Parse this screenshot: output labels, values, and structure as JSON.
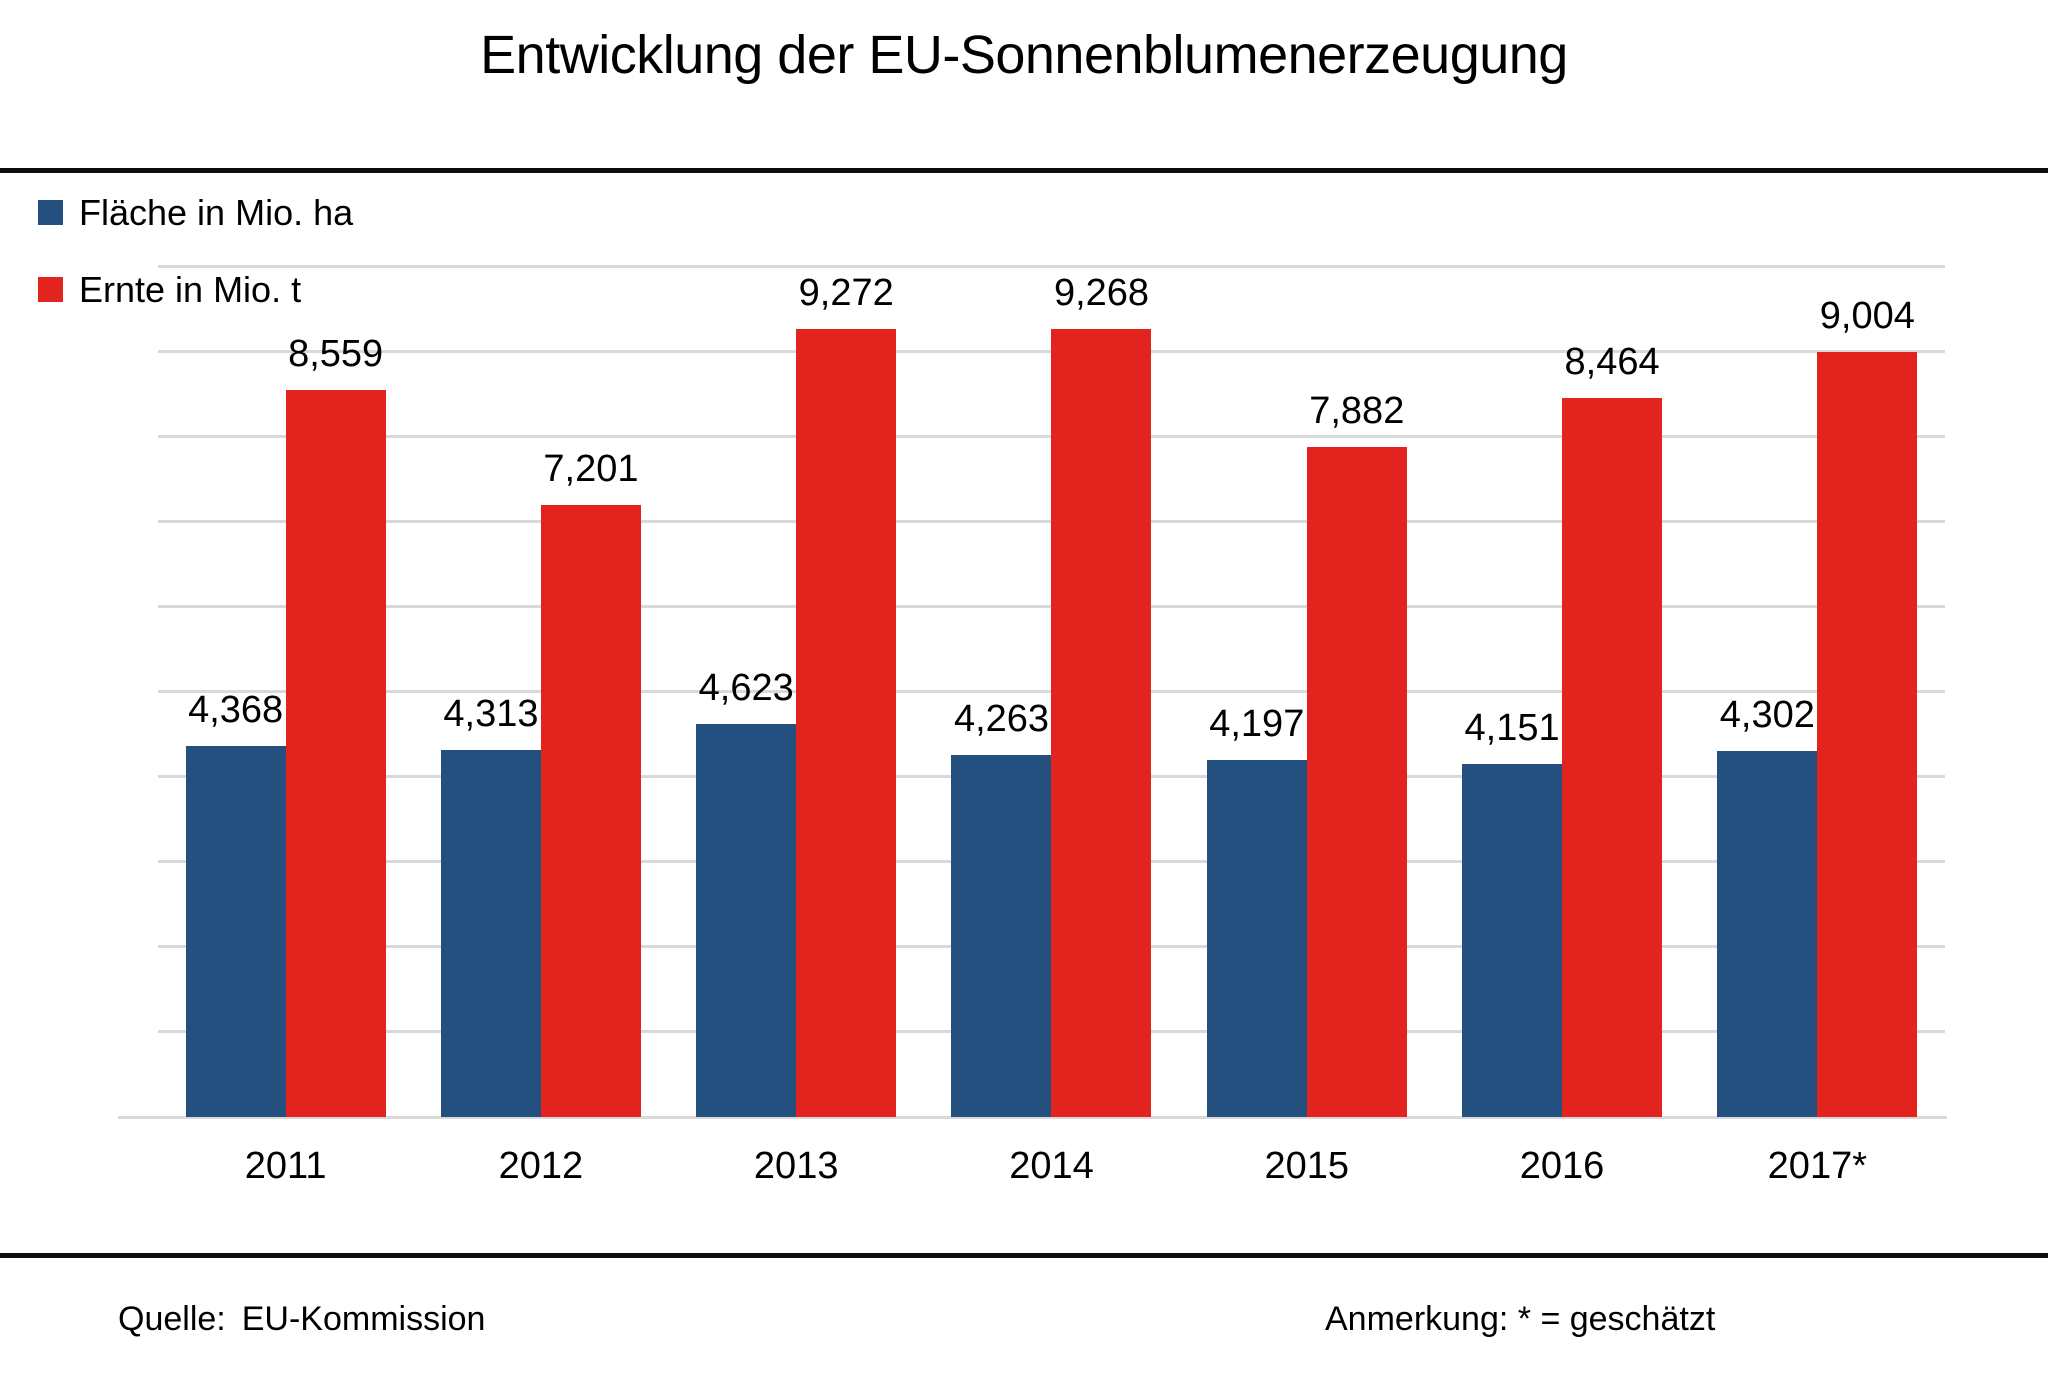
{
  "title": "Entwicklung der EU-Sonnenblumenerzeugung",
  "footer": {
    "source_label": "Quelle:",
    "source_value": "EU-Kommission",
    "note": "Anmerkung: * = geschätzt"
  },
  "chart_data": {
    "type": "bar",
    "title": "Entwicklung der EU-Sonnenblumenerzeugung",
    "categories": [
      "2011",
      "2012",
      "2013",
      "2014",
      "2015",
      "2016",
      "2017*"
    ],
    "series": [
      {
        "name": "Fläche in Mio. ha",
        "color": "#24507f",
        "values": [
          4.368,
          4.313,
          4.623,
          4.263,
          4.197,
          4.151,
          4.302
        ],
        "labels": [
          "4,368",
          "4,313",
          "4,623",
          "4,263",
          "4,197",
          "4,151",
          "4,302"
        ]
      },
      {
        "name": "Ernte in Mio. t",
        "color": "#e2231e",
        "values": [
          8.559,
          7.201,
          9.272,
          9.268,
          7.882,
          8.464,
          9.004
        ],
        "labels": [
          "8,559",
          "7,201",
          "9,272",
          "9,268",
          "7,882",
          "8,464",
          "9,004"
        ]
      }
    ],
    "ylim": [
      0,
      10
    ],
    "gridline_step": 1,
    "grid": true,
    "y_axis_labels_visible": false,
    "legend_position": "top-left",
    "note": "* = geschätzt"
  },
  "style": {
    "gridline_color": "#d9d9d9",
    "bar_colors": {
      "flaeche": "#24507f",
      "ernte": "#e2231e"
    }
  }
}
